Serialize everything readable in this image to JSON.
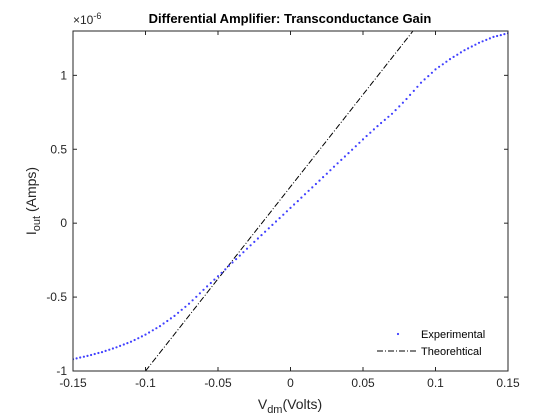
{
  "chart_data": {
    "type": "line",
    "title": "Differential Amplifier: Transconductance Gain",
    "xlabel": {
      "main": "V",
      "sub": "dm",
      "rest": "(Volts)"
    },
    "ylabel": {
      "main": "I",
      "sub": "out",
      "rest": " (Amps)"
    },
    "y_exponent": {
      "base": "×10",
      "power": "-6"
    },
    "xlim": [
      -0.15,
      0.15
    ],
    "ylim": [
      -1e-06,
      1.3e-06
    ],
    "xticks": [
      -0.15,
      -0.1,
      -0.05,
      0,
      0.05,
      0.1,
      0.15
    ],
    "xtick_labels": [
      "-0.15",
      "-0.1",
      "-0.05",
      "0",
      "0.05",
      "0.1",
      "0.15"
    ],
    "yticks": [
      -1e-06,
      -5e-07,
      0,
      5e-07,
      1e-06
    ],
    "ytick_labels": [
      "-1",
      "-0.5",
      "0",
      "0.5",
      "1"
    ],
    "grid": false,
    "legend_position": "bottom-right",
    "series": [
      {
        "name": "Experimental",
        "style": "dotted",
        "color": "#4040ff",
        "x": [
          -0.15,
          -0.14,
          -0.13,
          -0.12,
          -0.11,
          -0.1,
          -0.09,
          -0.08,
          -0.07,
          -0.06,
          -0.05,
          -0.04,
          -0.03,
          -0.02,
          -0.01,
          0,
          0.01,
          0.02,
          0.03,
          0.04,
          0.05,
          0.06,
          0.07,
          0.08,
          0.09,
          0.1,
          0.11,
          0.12,
          0.13,
          0.14,
          0.15
        ],
        "y": [
          -9.2e-07,
          -8.98e-07,
          -8.72e-07,
          -8.4e-07,
          -8.02e-07,
          -7.54e-07,
          -6.96e-07,
          -6.27e-07,
          -5.45e-07,
          -4.51e-07,
          -3.59e-07,
          -2.66e-07,
          -1.73e-07,
          -8.1e-08,
          1.1e-08,
          1.03e-07,
          1.96e-07,
          2.88e-07,
          3.82e-07,
          4.74e-07,
          5.67e-07,
          6.57e-07,
          7.4e-07,
          8.4e-07,
          9.5e-07,
          1.04e-06,
          1.11e-06,
          1.17e-06,
          1.22e-06,
          1.26e-06,
          1.285e-06
        ]
      },
      {
        "name": "Theorehtical",
        "style": "dash-dot",
        "color": "#000000",
        "x": [
          -0.1,
          0.0845
        ],
        "y": [
          -1e-06,
          1.3e-06
        ]
      }
    ]
  }
}
